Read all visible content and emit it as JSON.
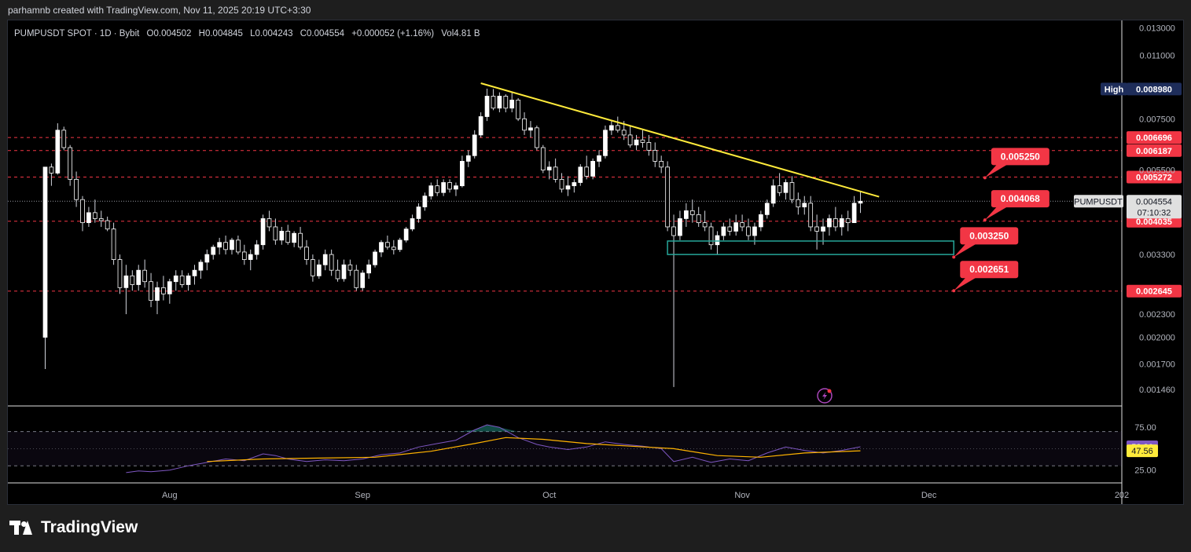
{
  "header": {
    "credit": "parhamnb created with TradingView.com, Nov 11, 2025 20:19 UTC+3:30"
  },
  "legend": {
    "symbol": "PUMPUSDT SPOT · 1D · Bybit",
    "open": "O0.004502",
    "high": "H0.004845",
    "low": "L0.004243",
    "close": "C0.004554",
    "change": "+0.000052 (+1.16%)",
    "volume": "Vol4.81 B"
  },
  "colors": {
    "background": "#000000",
    "candle_up": "#ffffff",
    "candle_down": "#ffffff",
    "trendline": "#ffeb3b",
    "dashed_level": "#f23645",
    "price_tag": "#f23645",
    "support_box": "#26a69a",
    "rsi_line": "#7e57c2",
    "rsi_ma": "#ffb300",
    "high_tag": "#1e2d5a"
  },
  "chart_data": {
    "type": "candlestick",
    "symbol": "PUMPUSDT",
    "timeframe": "1D",
    "exchange": "Bybit",
    "price_axis_scale": "log",
    "price_axis_ticks": [
      "0.013000",
      "0.011000",
      "0.007500",
      "0.005500",
      "0.003300",
      "0.002300",
      "0.002000",
      "0.001700",
      "0.001460"
    ],
    "price_range": [
      0.00132,
      0.0136
    ],
    "time_axis_labels": [
      "Aug",
      "Sep",
      "Oct",
      "Nov",
      "Dec",
      "202"
    ],
    "time_axis_dates": [
      "2025-08-01",
      "2025-09-01",
      "2025-10-01",
      "2025-11-01",
      "2025-12-01",
      "2026-01-01"
    ],
    "time_range": [
      "2025-07-06",
      "2026-01-01"
    ],
    "candles": [
      [
        "2025-07-12",
        0.002,
        0.0056,
        0.00165,
        0.0056
      ],
      [
        "2025-07-13",
        0.0056,
        0.00572,
        0.005,
        0.0054
      ],
      [
        "2025-07-14",
        0.0054,
        0.0073,
        0.00535,
        0.007
      ],
      [
        "2025-07-15",
        0.007,
        0.00715,
        0.0062,
        0.0063
      ],
      [
        "2025-07-16",
        0.0063,
        0.0064,
        0.005,
        0.0052
      ],
      [
        "2025-07-17",
        0.0052,
        0.00545,
        0.0044,
        0.0046
      ],
      [
        "2025-07-18",
        0.0046,
        0.0047,
        0.0038,
        0.004
      ],
      [
        "2025-07-19",
        0.004,
        0.0044,
        0.0039,
        0.00425
      ],
      [
        "2025-07-20",
        0.00425,
        0.0046,
        0.004,
        0.0041
      ],
      [
        "2025-07-21",
        0.0041,
        0.0043,
        0.0039,
        0.00405
      ],
      [
        "2025-07-22",
        0.00405,
        0.00415,
        0.0038,
        0.00385
      ],
      [
        "2025-07-23",
        0.00385,
        0.004,
        0.0031,
        0.0032
      ],
      [
        "2025-07-24",
        0.0032,
        0.0033,
        0.0026,
        0.0027
      ],
      [
        "2025-07-25",
        0.0027,
        0.0031,
        0.0023,
        0.0029
      ],
      [
        "2025-07-26",
        0.0029,
        0.003,
        0.00265,
        0.00275
      ],
      [
        "2025-07-27",
        0.00275,
        0.0031,
        0.00265,
        0.003
      ],
      [
        "2025-07-28",
        0.003,
        0.0032,
        0.0027,
        0.0028
      ],
      [
        "2025-07-29",
        0.0028,
        0.00295,
        0.0024,
        0.0025
      ],
      [
        "2025-07-30",
        0.0025,
        0.0028,
        0.0023,
        0.0027
      ],
      [
        "2025-07-31",
        0.0027,
        0.0029,
        0.0025,
        0.0026
      ],
      [
        "2025-08-01",
        0.0026,
        0.00285,
        0.00245,
        0.0028
      ],
      [
        "2025-08-02",
        0.0028,
        0.003,
        0.00265,
        0.0029
      ],
      [
        "2025-08-03",
        0.0029,
        0.003,
        0.0027,
        0.00275
      ],
      [
        "2025-08-04",
        0.00275,
        0.00295,
        0.00265,
        0.0029
      ],
      [
        "2025-08-05",
        0.0029,
        0.0031,
        0.00275,
        0.003
      ],
      [
        "2025-08-06",
        0.003,
        0.0032,
        0.00285,
        0.00315
      ],
      [
        "2025-08-07",
        0.00315,
        0.0034,
        0.003,
        0.0033
      ],
      [
        "2025-08-08",
        0.0033,
        0.0035,
        0.0032,
        0.00345
      ],
      [
        "2025-08-09",
        0.00345,
        0.00365,
        0.0033,
        0.00355
      ],
      [
        "2025-08-10",
        0.00355,
        0.0037,
        0.0033,
        0.0034
      ],
      [
        "2025-08-11",
        0.0034,
        0.00365,
        0.0033,
        0.0036
      ],
      [
        "2025-08-12",
        0.0036,
        0.0037,
        0.0033,
        0.00335
      ],
      [
        "2025-08-13",
        0.00335,
        0.0035,
        0.0031,
        0.0032
      ],
      [
        "2025-08-14",
        0.0032,
        0.0034,
        0.003,
        0.0033
      ],
      [
        "2025-08-15",
        0.0033,
        0.0036,
        0.0032,
        0.0035
      ],
      [
        "2025-08-16",
        0.0035,
        0.0042,
        0.0034,
        0.0041
      ],
      [
        "2025-08-17",
        0.0041,
        0.0043,
        0.0038,
        0.0039
      ],
      [
        "2025-08-18",
        0.0039,
        0.0041,
        0.0035,
        0.0036
      ],
      [
        "2025-08-19",
        0.0036,
        0.0039,
        0.0035,
        0.0038
      ],
      [
        "2025-08-20",
        0.0038,
        0.00395,
        0.0035,
        0.00355
      ],
      [
        "2025-08-21",
        0.00355,
        0.0038,
        0.00345,
        0.00375
      ],
      [
        "2025-08-22",
        0.00375,
        0.0039,
        0.0034,
        0.00345
      ],
      [
        "2025-08-23",
        0.00345,
        0.0036,
        0.0031,
        0.0032
      ],
      [
        "2025-08-24",
        0.0032,
        0.0033,
        0.0028,
        0.0029
      ],
      [
        "2025-08-25",
        0.0029,
        0.0032,
        0.00285,
        0.0031
      ],
      [
        "2025-08-26",
        0.0031,
        0.0034,
        0.003,
        0.0033
      ],
      [
        "2025-08-27",
        0.0033,
        0.0034,
        0.0029,
        0.003
      ],
      [
        "2025-08-28",
        0.003,
        0.0032,
        0.0028,
        0.00285
      ],
      [
        "2025-08-29",
        0.00285,
        0.0032,
        0.0028,
        0.0031
      ],
      [
        "2025-08-30",
        0.0031,
        0.0032,
        0.0029,
        0.003
      ],
      [
        "2025-08-31",
        0.003,
        0.0031,
        0.00265,
        0.0027
      ],
      [
        "2025-09-01",
        0.0027,
        0.003,
        0.00265,
        0.00295
      ],
      [
        "2025-09-02",
        0.00295,
        0.0032,
        0.00285,
        0.0031
      ],
      [
        "2025-09-03",
        0.0031,
        0.0034,
        0.00305,
        0.00335
      ],
      [
        "2025-09-04",
        0.00335,
        0.0036,
        0.00325,
        0.00355
      ],
      [
        "2025-09-05",
        0.00355,
        0.0037,
        0.0034,
        0.00345
      ],
      [
        "2025-09-06",
        0.00345,
        0.0036,
        0.0033,
        0.0034
      ],
      [
        "2025-09-07",
        0.0034,
        0.00365,
        0.00335,
        0.0036
      ],
      [
        "2025-09-08",
        0.0036,
        0.0039,
        0.00355,
        0.00385
      ],
      [
        "2025-09-09",
        0.00385,
        0.0042,
        0.0038,
        0.0041
      ],
      [
        "2025-09-10",
        0.0041,
        0.0045,
        0.004,
        0.0044
      ],
      [
        "2025-09-11",
        0.0044,
        0.0048,
        0.0043,
        0.0047
      ],
      [
        "2025-09-12",
        0.0047,
        0.0051,
        0.0046,
        0.005
      ],
      [
        "2025-09-13",
        0.005,
        0.0052,
        0.0047,
        0.0048
      ],
      [
        "2025-09-14",
        0.0048,
        0.0052,
        0.0047,
        0.0051
      ],
      [
        "2025-09-15",
        0.0051,
        0.0052,
        0.0048,
        0.0049
      ],
      [
        "2025-09-16",
        0.0049,
        0.0051,
        0.0047,
        0.005
      ],
      [
        "2025-09-17",
        0.005,
        0.006,
        0.00495,
        0.0058
      ],
      [
        "2025-09-18",
        0.0058,
        0.0062,
        0.0056,
        0.006
      ],
      [
        "2025-09-19",
        0.006,
        0.007,
        0.0059,
        0.0068
      ],
      [
        "2025-09-20",
        0.0068,
        0.0078,
        0.0067,
        0.0076
      ],
      [
        "2025-09-21",
        0.0076,
        0.009,
        0.0074,
        0.0086
      ],
      [
        "2025-09-22",
        0.0086,
        0.00898,
        0.0079,
        0.008
      ],
      [
        "2025-09-23",
        0.008,
        0.0088,
        0.0078,
        0.0086
      ],
      [
        "2025-09-24",
        0.0086,
        0.0087,
        0.0078,
        0.008
      ],
      [
        "2025-09-25",
        0.008,
        0.0088,
        0.0078,
        0.0084
      ],
      [
        "2025-09-26",
        0.0084,
        0.0085,
        0.0074,
        0.0075
      ],
      [
        "2025-09-27",
        0.0075,
        0.0078,
        0.0068,
        0.007
      ],
      [
        "2025-09-28",
        0.007,
        0.0074,
        0.0067,
        0.0071
      ],
      [
        "2025-09-29",
        0.0071,
        0.0072,
        0.0062,
        0.0063
      ],
      [
        "2025-09-30",
        0.0063,
        0.0064,
        0.0054,
        0.0055
      ],
      [
        "2025-10-01",
        0.0055,
        0.0058,
        0.0052,
        0.0056
      ],
      [
        "2025-10-02",
        0.0056,
        0.0059,
        0.0051,
        0.0052
      ],
      [
        "2025-10-03",
        0.0052,
        0.0054,
        0.0048,
        0.0049
      ],
      [
        "2025-10-04",
        0.0049,
        0.0053,
        0.0047,
        0.005
      ],
      [
        "2025-10-05",
        0.005,
        0.0052,
        0.0048,
        0.0051
      ],
      [
        "2025-10-06",
        0.0051,
        0.0057,
        0.005,
        0.0056
      ],
      [
        "2025-10-07",
        0.0056,
        0.006,
        0.0052,
        0.0053
      ],
      [
        "2025-10-08",
        0.0053,
        0.0059,
        0.0052,
        0.0058
      ],
      [
        "2025-10-09",
        0.0058,
        0.0062,
        0.0056,
        0.006
      ],
      [
        "2025-10-10",
        0.006,
        0.0072,
        0.0059,
        0.007
      ],
      [
        "2025-10-11",
        0.007,
        0.0074,
        0.0068,
        0.0072
      ],
      [
        "2025-10-12",
        0.0072,
        0.0076,
        0.0069,
        0.007
      ],
      [
        "2025-10-13",
        0.007,
        0.0074,
        0.0066,
        0.0068
      ],
      [
        "2025-10-14",
        0.0068,
        0.0072,
        0.0063,
        0.0064
      ],
      [
        "2025-10-15",
        0.0064,
        0.0068,
        0.0062,
        0.0066
      ],
      [
        "2025-10-16",
        0.0066,
        0.007,
        0.0063,
        0.0065
      ],
      [
        "2025-10-17",
        0.0065,
        0.0068,
        0.006,
        0.0062
      ],
      [
        "2025-10-18",
        0.0062,
        0.0065,
        0.0056,
        0.0058
      ],
      [
        "2025-10-19",
        0.0058,
        0.006,
        0.0054,
        0.0056
      ],
      [
        "2025-10-20",
        0.0056,
        0.0058,
        0.0038,
        0.0039
      ],
      [
        "2025-10-21",
        0.0039,
        0.0042,
        0.00148,
        0.0037
      ],
      [
        "2025-10-22",
        0.0037,
        0.0043,
        0.0036,
        0.0041
      ],
      [
        "2025-10-23",
        0.0041,
        0.0045,
        0.0039,
        0.0043
      ],
      [
        "2025-10-24",
        0.0043,
        0.0046,
        0.004,
        0.0042
      ],
      [
        "2025-10-25",
        0.0042,
        0.0044,
        0.0039,
        0.004
      ],
      [
        "2025-10-26",
        0.004,
        0.0043,
        0.0038,
        0.0039
      ],
      [
        "2025-10-27",
        0.0039,
        0.004,
        0.0034,
        0.0035
      ],
      [
        "2025-10-28",
        0.0035,
        0.0038,
        0.0033,
        0.0037
      ],
      [
        "2025-10-29",
        0.0037,
        0.004,
        0.0036,
        0.0039
      ],
      [
        "2025-10-30",
        0.0039,
        0.0041,
        0.0037,
        0.0038
      ],
      [
        "2025-10-31",
        0.0038,
        0.0042,
        0.0037,
        0.004
      ],
      [
        "2025-11-01",
        0.004,
        0.0042,
        0.0038,
        0.0039
      ],
      [
        "2025-11-02",
        0.0039,
        0.0041,
        0.0036,
        0.0037
      ],
      [
        "2025-11-03",
        0.0037,
        0.004,
        0.0035,
        0.0039
      ],
      [
        "2025-11-04",
        0.0039,
        0.0043,
        0.0038,
        0.0042
      ],
      [
        "2025-11-05",
        0.0042,
        0.0046,
        0.0041,
        0.0045
      ],
      [
        "2025-11-06",
        0.0045,
        0.0052,
        0.0044,
        0.005
      ],
      [
        "2025-11-07",
        0.005,
        0.0054,
        0.0047,
        0.0048
      ],
      [
        "2025-11-08",
        0.0048,
        0.0052,
        0.0046,
        0.0051
      ],
      [
        "2025-11-09",
        0.0051,
        0.0053,
        0.0045,
        0.0046
      ],
      [
        "2025-11-10",
        0.0046,
        0.0048,
        0.0042,
        0.0044
      ],
      [
        "2025-11-11",
        0.0044,
        0.0047,
        0.0042,
        0.0045
      ],
      [
        "2025-11-12",
        0.0045,
        0.0047,
        0.0038,
        0.0039
      ],
      [
        "2025-11-13",
        0.0039,
        0.0042,
        0.0034,
        0.0038
      ],
      [
        "2025-11-14",
        0.0038,
        0.0041,
        0.0035,
        0.0039
      ],
      [
        "2025-11-15",
        0.0039,
        0.0042,
        0.0037,
        0.0041
      ],
      [
        "2025-11-16",
        0.0041,
        0.0044,
        0.0038,
        0.0039
      ],
      [
        "2025-11-17",
        0.0039,
        0.0042,
        0.0037,
        0.0041
      ],
      [
        "2025-11-18",
        0.0041,
        0.0043,
        0.0038,
        0.004
      ],
      [
        "2025-11-19",
        0.004,
        0.0047,
        0.004,
        0.0045
      ],
      [
        "2025-11-20",
        0.004502,
        0.004845,
        0.004243,
        0.004554
      ]
    ],
    "horizontal_levels": [
      {
        "price": 0.006696,
        "label": "0.006696"
      },
      {
        "price": 0.006187,
        "label": "0.006187"
      },
      {
        "price": 0.005272,
        "label": "0.005272"
      },
      {
        "price": 0.004035,
        "label": "0.004035"
      },
      {
        "price": 0.002645,
        "label": "0.002645"
      }
    ],
    "high_marker": {
      "label": "High",
      "value": "0.008980",
      "price": 0.00898
    },
    "last_price": {
      "symbol": "PUMPUSDT",
      "value": "0.004554",
      "price": 0.004554,
      "countdown": "07:10:32"
    },
    "trendline": {
      "start": [
        "2025-09-20",
        0.0093
      ],
      "end": [
        "2025-11-23",
        0.00468
      ]
    },
    "support_zone": {
      "start": "2025-10-20",
      "end": "2025-12-05",
      "top": 0.00358,
      "bottom": 0.0033
    },
    "target_tags": [
      {
        "label": "0.005250",
        "date": "2025-12-10",
        "price": 0.00525
      },
      {
        "label": "0.004068",
        "date": "2025-12-10",
        "price": 0.004068
      },
      {
        "label": "0.003250",
        "date": "2025-12-05",
        "price": 0.00325
      },
      {
        "label": "0.002651",
        "date": "2025-12-05",
        "price": 0.002651
      }
    ],
    "rsi": {
      "ticks": [
        "75.00",
        "25.00"
      ],
      "bands": [
        70,
        30
      ],
      "range": [
        10,
        100
      ],
      "current": "52.26",
      "ma_current": "47.56",
      "rsi_series": [
        [
          "2025-07-25",
          22
        ],
        [
          "2025-07-27",
          24
        ],
        [
          "2025-07-29",
          23
        ],
        [
          "2025-08-01",
          25
        ],
        [
          "2025-08-04",
          30
        ],
        [
          "2025-08-07",
          34
        ],
        [
          "2025-08-10",
          38
        ],
        [
          "2025-08-13",
          36
        ],
        [
          "2025-08-16",
          44
        ],
        [
          "2025-08-18",
          42
        ],
        [
          "2025-08-20",
          38
        ],
        [
          "2025-08-23",
          35
        ],
        [
          "2025-08-26",
          37
        ],
        [
          "2025-08-29",
          36
        ],
        [
          "2025-09-01",
          38
        ],
        [
          "2025-09-04",
          43
        ],
        [
          "2025-09-07",
          45
        ],
        [
          "2025-09-10",
          52
        ],
        [
          "2025-09-13",
          56
        ],
        [
          "2025-09-16",
          60
        ],
        [
          "2025-09-19",
          72
        ],
        [
          "2025-09-21",
          78
        ],
        [
          "2025-09-23",
          75
        ],
        [
          "2025-09-26",
          63
        ],
        [
          "2025-09-29",
          55
        ],
        [
          "2025-10-01",
          52
        ],
        [
          "2025-10-04",
          49
        ],
        [
          "2025-10-07",
          52
        ],
        [
          "2025-10-10",
          58
        ],
        [
          "2025-10-13",
          55
        ],
        [
          "2025-10-16",
          53
        ],
        [
          "2025-10-19",
          50
        ],
        [
          "2025-10-21",
          35
        ],
        [
          "2025-10-24",
          40
        ],
        [
          "2025-10-27",
          34
        ],
        [
          "2025-10-30",
          38
        ],
        [
          "2025-11-02",
          36
        ],
        [
          "2025-11-05",
          45
        ],
        [
          "2025-11-08",
          52
        ],
        [
          "2025-11-11",
          48
        ],
        [
          "2025-11-14",
          45
        ],
        [
          "2025-11-17",
          48
        ],
        [
          "2025-11-20",
          52.26
        ]
      ],
      "ma_series": [
        [
          "2025-08-07",
          35
        ],
        [
          "2025-08-16",
          38
        ],
        [
          "2025-08-25",
          39
        ],
        [
          "2025-09-03",
          40
        ],
        [
          "2025-09-12",
          47
        ],
        [
          "2025-09-19",
          56
        ],
        [
          "2025-09-24",
          63
        ],
        [
          "2025-09-30",
          61
        ],
        [
          "2025-10-07",
          56
        ],
        [
          "2025-10-14",
          53
        ],
        [
          "2025-10-21",
          50
        ],
        [
          "2025-10-28",
          42
        ],
        [
          "2025-11-04",
          40
        ],
        [
          "2025-11-11",
          45
        ],
        [
          "2025-11-20",
          47.56
        ]
      ]
    }
  }
}
